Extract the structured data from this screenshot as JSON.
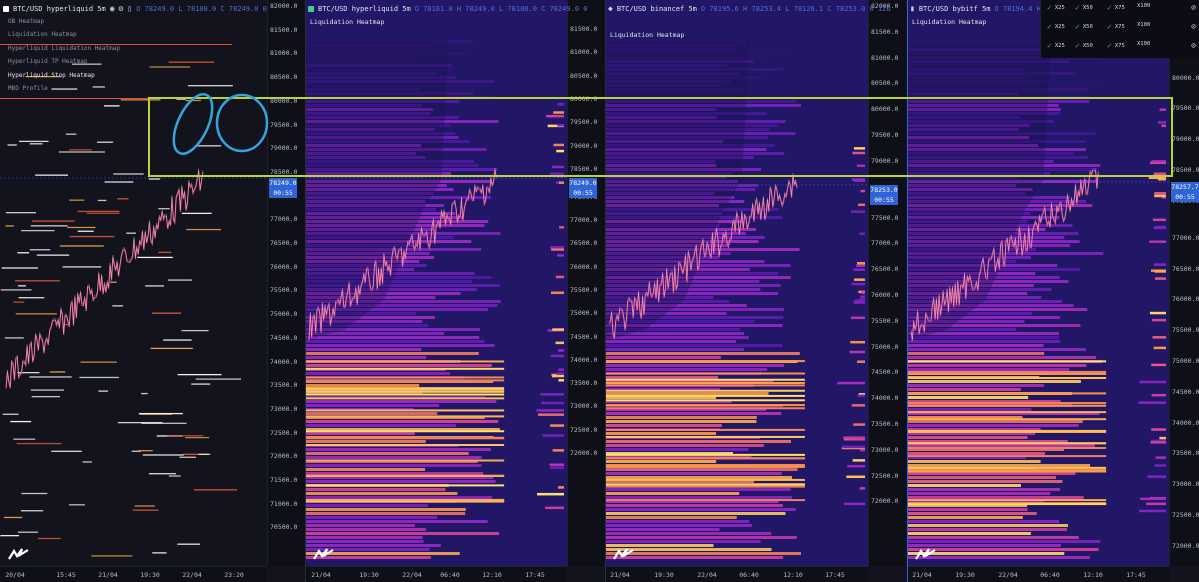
{
  "panels": [
    {
      "id": "p1",
      "header": {
        "title": "BTC/USD hyperliquid 5m",
        "ohlc": "O 78249.0 L 78108.0 C 78249.0 0"
      },
      "indicators": [
        {
          "label": "OB Heatmap",
          "active": false
        },
        {
          "label": "Liquidation Heatmap",
          "active": false
        },
        {
          "label": "Hyperliquid Liquidation Heatmap",
          "active": false
        },
        {
          "label": "Hyperliquid TP Heatmap",
          "active": false
        },
        {
          "label": "Hyperliquid Stop Heatmap",
          "active": true
        },
        {
          "label": "MBO Profile",
          "active": false
        }
      ],
      "y_labels": [
        "82000.0",
        "81500.0",
        "81000.0",
        "80500.0",
        "80000.0",
        "79500.0",
        "79000.0",
        "78500.0",
        "77500.0",
        "77000.0",
        "76500.0",
        "76000.0",
        "75500.0",
        "75000.0",
        "74500.0",
        "74000.0",
        "73500.0",
        "73000.0",
        "72500.0",
        "72000.0",
        "71500.0",
        "71000.0",
        "70500.0"
      ],
      "price_tag": {
        "price": "78249.0",
        "time": "00:55"
      },
      "x_labels": [
        "20/04",
        "15:45",
        "21/04",
        "19:30",
        "22/04",
        "23:20"
      ]
    },
    {
      "id": "p2",
      "header": {
        "title": "BTC/USD hyperliquid 5m",
        "ohlc": "O 78161.0 H 78249.0 L 78108.0 C 78249.0 0"
      },
      "subtitle": "Liquidation Heatmap",
      "y_labels": [
        "81500.0",
        "81000.0",
        "80500.0",
        "80000.0",
        "79500.0",
        "79000.0",
        "78500.0",
        "77500.0",
        "77000.0",
        "76500.0",
        "76000.0",
        "75500.0",
        "75000.0",
        "74500.0",
        "74000.0",
        "73500.0",
        "73000.0",
        "72500.0",
        "72000.0"
      ],
      "price_tag": {
        "price": "78249.0",
        "time": "00:55"
      },
      "x_labels": [
        "21/04",
        "19:30",
        "22/04",
        "06:40",
        "12:10",
        "17:45"
      ]
    },
    {
      "id": "p3",
      "header": {
        "title": "BTC/USD binancef 5m",
        "ohlc": "O 78195.6 H 78253.4 L 78126.1 C 78253.0 0 126"
      },
      "subtitle": "Liquidation Heatmap",
      "y_labels": [
        "82000.0",
        "81500.0",
        "81000.0",
        "80500.0",
        "80000.0",
        "79500.0",
        "79000.0",
        "78500.0",
        "77500.0",
        "77000.0",
        "76500.0",
        "76000.0",
        "75500.0",
        "75000.0",
        "74500.0",
        "74000.0",
        "73500.0",
        "73000.0",
        "72500.0",
        "72000.0"
      ],
      "price_tag": {
        "price": "78253.0",
        "time": "00:55"
      },
      "x_labels": [
        "21/04",
        "19:30",
        "22/04",
        "06:40",
        "12:10",
        "17:45"
      ]
    },
    {
      "id": "p4",
      "header": {
        "title": "BTC/USD bybitf 5m",
        "ohlc": "O 78194.4 H"
      },
      "subtitle": "Liquidation Heatmap",
      "y_labels": [
        "81000.0",
        "80500.0",
        "80000.0",
        "79500.0",
        "79000.0",
        "78500.0",
        "77500.0",
        "77000.0",
        "76500.0",
        "76000.0",
        "75500.0",
        "75000.0",
        "74500.0",
        "74000.0",
        "73500.0",
        "73000.0",
        "72500.0",
        "72000.0"
      ],
      "price_tag": {
        "price": "78257.7",
        "time": "00:55"
      },
      "x_labels": [
        "21/04",
        "19:30",
        "22/04",
        "06:40",
        "12:10",
        "17:45"
      ]
    }
  ],
  "leverage_panel": {
    "rows": [
      {
        "items": [
          "X25",
          "X50",
          "X75",
          "X100"
        ],
        "checked": [
          true,
          true,
          true,
          false
        ]
      },
      {
        "items": [
          "X25",
          "X50",
          "X75",
          "X100"
        ],
        "checked": [
          true,
          true,
          true,
          false
        ]
      },
      {
        "items": [
          "X25",
          "X50",
          "X75",
          "X100"
        ],
        "checked": [
          true,
          true,
          true,
          false
        ]
      }
    ]
  },
  "colors": {
    "accent": "#2f63d6",
    "highlight_box": "#b9d33a",
    "annotation_circle": "#35a3dc",
    "ohlc_text": "#4f6fd6"
  }
}
